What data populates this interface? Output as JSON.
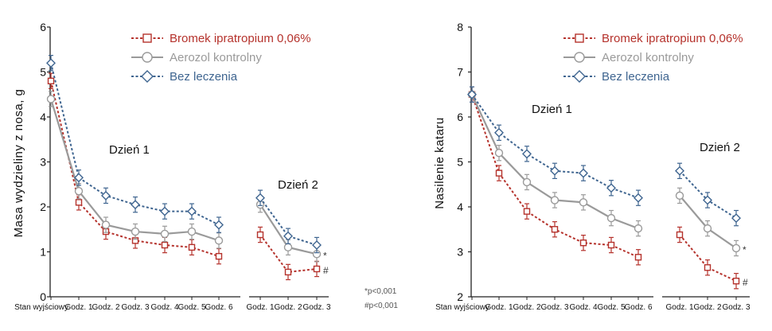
{
  "colors": {
    "bromek": "#b5322c",
    "aerozol": "#9a9a9a",
    "bez": "#3f6590",
    "axis": "#222222"
  },
  "footnote": {
    "line1": "*p<0,001",
    "line2": "#p<0,001"
  },
  "chart_data": [
    {
      "type": "line",
      "ylabel": "Masa wydzieliny z nosa, g",
      "xlabel": "",
      "ylim": [
        0,
        6
      ],
      "yticks": [
        "0",
        "1",
        "2",
        "3",
        "4",
        "5",
        "6"
      ],
      "categories": [
        "Stan wyjściowy",
        "Godz. 1",
        "Godz. 2",
        "Godz. 3",
        "Godz. 4",
        "Godz. 5",
        "Godz. 6",
        "Godz. 1",
        "Godz. 2",
        "Godz. 3"
      ],
      "day1_label": "Dzień 1",
      "day2_label": "Dzień 2",
      "legend": [
        "Bromek ipratropium 0,06%",
        "Aerozol kontrolny",
        "Bez leczenia"
      ],
      "series": [
        {
          "name": "Bromek ipratropium 0,06%",
          "marker": "square",
          "style": "dotted",
          "values": [
            4.8,
            2.1,
            1.45,
            1.25,
            1.15,
            1.1,
            0.9,
            1.38,
            0.55,
            0.62
          ],
          "err": 0.17
        },
        {
          "name": "Aerozol kontrolny",
          "marker": "circle",
          "style": "solid",
          "values": [
            4.4,
            2.35,
            1.6,
            1.45,
            1.4,
            1.45,
            1.25,
            2.05,
            1.1,
            0.95
          ],
          "err": 0.17
        },
        {
          "name": "Bez leczenia",
          "marker": "diamond",
          "style": "dotted",
          "values": [
            5.2,
            2.65,
            2.25,
            2.05,
            1.9,
            1.9,
            1.6,
            2.2,
            1.35,
            1.15
          ],
          "err": 0.17
        }
      ],
      "annotations": [
        {
          "text": "*",
          "point": 9,
          "series": 1
        },
        {
          "text": "#",
          "point": 9,
          "series": 0
        }
      ]
    },
    {
      "type": "line",
      "ylabel": "Nasilenie kataru",
      "xlabel": "",
      "ylim": [
        2,
        8
      ],
      "yticks": [
        "2",
        "3",
        "4",
        "5",
        "6",
        "7",
        "8"
      ],
      "categories": [
        "Stan wyjściowy",
        "Godz. 1",
        "Godz. 2",
        "Godz. 3",
        "Godz. 4",
        "Godz. 5",
        "Godz. 6",
        "Godz. 1",
        "Godz. 2",
        "Godz. 3"
      ],
      "day1_label": "Dzień 1",
      "day2_label": "Dzień 2",
      "legend": [
        "Bromek ipratropium 0,06%",
        "Aerozol kontrolny",
        "Bez leczenia"
      ],
      "series": [
        {
          "name": "Bromek ipratropium 0,06%",
          "marker": "square",
          "style": "dotted",
          "values": [
            6.5,
            4.75,
            3.9,
            3.5,
            3.2,
            3.15,
            2.88,
            3.38,
            2.65,
            2.35
          ],
          "err": 0.17
        },
        {
          "name": "Aerozol kontrolny",
          "marker": "circle",
          "style": "solid",
          "values": [
            6.5,
            5.2,
            4.55,
            4.15,
            4.1,
            3.75,
            3.52,
            4.25,
            3.52,
            3.08
          ],
          "err": 0.17
        },
        {
          "name": "Bez leczenia",
          "marker": "diamond",
          "style": "dotted",
          "values": [
            6.5,
            5.65,
            5.18,
            4.8,
            4.75,
            4.42,
            4.2,
            4.8,
            4.15,
            3.75
          ],
          "err": 0.17
        }
      ],
      "annotations": [
        {
          "text": "*",
          "point": 9,
          "series": 1
        },
        {
          "text": "#",
          "point": 9,
          "series": 0
        }
      ]
    }
  ]
}
